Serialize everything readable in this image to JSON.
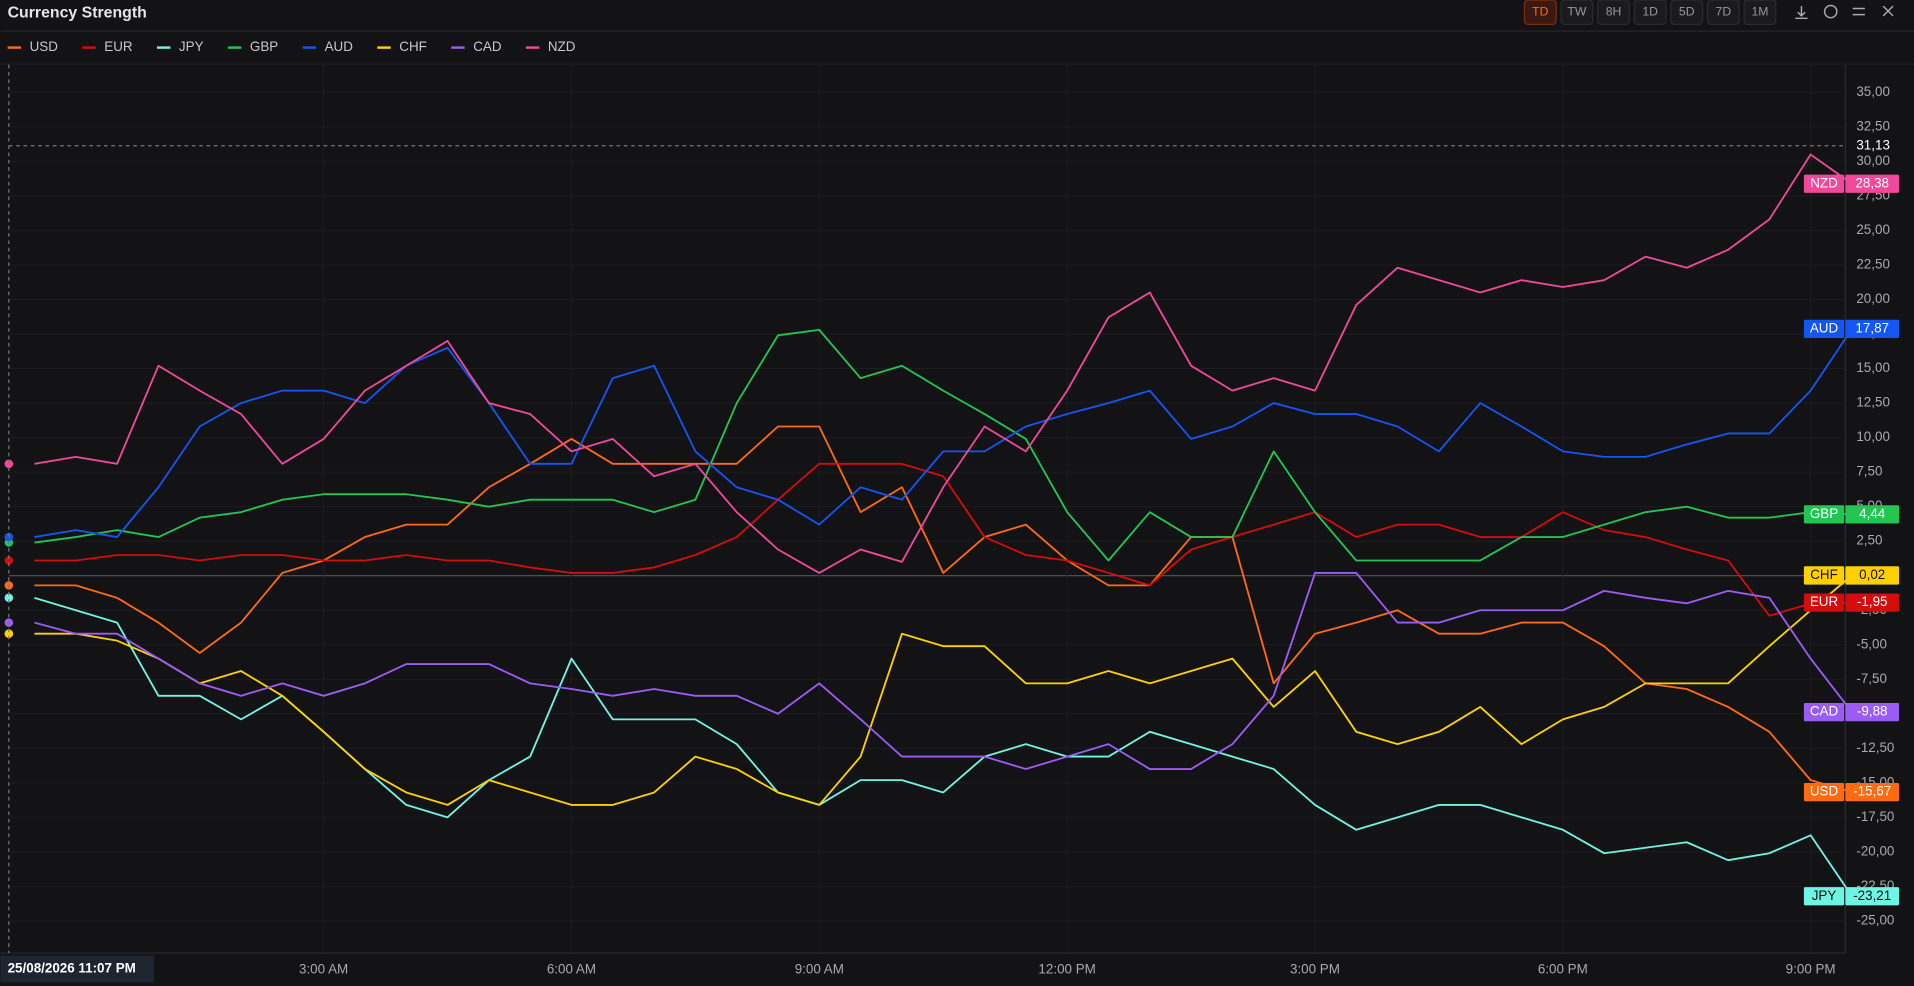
{
  "header": {
    "title": "Currency Strength",
    "buttons": [
      "TD",
      "TW",
      "8H",
      "1D",
      "5D",
      "7D",
      "1M"
    ],
    "active": "TD"
  },
  "chart_data": {
    "type": "line",
    "categories": [
      null,
      null,
      null,
      null,
      null,
      null,
      null,
      "3:00 AM",
      null,
      null,
      null,
      null,
      null,
      "6:00 AM",
      null,
      null,
      null,
      null,
      null,
      "9:00 AM",
      null,
      null,
      null,
      null,
      null,
      "12:00 PM",
      null,
      null,
      null,
      null,
      null,
      "3:00 PM",
      null,
      null,
      null,
      null,
      null,
      "6:00 PM",
      null,
      null,
      null,
      null,
      null,
      "9:00 PM",
      null
    ],
    "ylim": [
      -27.5,
      37
    ],
    "yticks": [
      {
        "value": -25,
        "label": "-25,00"
      },
      {
        "value": -22.5,
        "label": "-22,50"
      },
      {
        "value": -20,
        "label": "-20,00"
      },
      {
        "value": -17.5,
        "label": "-17,50"
      },
      {
        "value": -15,
        "label": "-15,00"
      },
      {
        "value": -12.5,
        "label": "-12,50"
      },
      {
        "value": -10,
        "label": "-10,00"
      },
      {
        "value": -7.5,
        "label": "-7,50"
      },
      {
        "value": -5,
        "label": "-5,00"
      },
      {
        "value": -2.5,
        "label": "-2,50"
      },
      {
        "value": 0,
        "label": "0,00"
      },
      {
        "value": 2.5,
        "label": "2,50"
      },
      {
        "value": 5,
        "label": "5,00"
      },
      {
        "value": 7.5,
        "label": "7,50"
      },
      {
        "value": 10,
        "label": "10,00"
      },
      {
        "value": 12.5,
        "label": "12,50"
      },
      {
        "value": 15,
        "label": "15,00"
      },
      {
        "value": 17.5,
        "label": "17,50"
      },
      {
        "value": 20,
        "label": "20,00"
      },
      {
        "value": 22.5,
        "label": "22,50"
      },
      {
        "value": 25,
        "label": "25,00"
      },
      {
        "value": 27.5,
        "label": "27,50"
      },
      {
        "value": 30,
        "label": "30,00"
      },
      {
        "value": 32.5,
        "label": "32,50"
      },
      {
        "value": 35,
        "label": "35,00"
      }
    ],
    "grid": true,
    "crosshair": {
      "value": 31.13,
      "label": "31,13",
      "time": "25/08/2026 11:07 PM"
    },
    "series": [
      {
        "name": "USD",
        "color": "#ff6a13",
        "values": [
          -0.7,
          -0.7,
          -1.6,
          -3.4,
          -5.6,
          -3.4,
          0.2,
          1.1,
          2.8,
          3.7,
          3.7,
          6.4,
          8.1,
          9.9,
          8.1,
          8.1,
          8.1,
          8.1,
          10.8,
          10.8,
          4.6,
          6.4,
          0.2,
          2.8,
          3.7,
          1.1,
          -0.7,
          -0.7,
          2.8,
          2.8,
          -7.8,
          -4.2,
          -3.4,
          -2.5,
          -4.2,
          -4.2,
          -3.4,
          -3.4,
          -5.1,
          -7.8,
          -8.2,
          -9.5,
          -11.3,
          -14.8,
          -15.67
        ],
        "value_labels": [
          null,
          null,
          null,
          null,
          null,
          null,
          null,
          null,
          null,
          null,
          null,
          null,
          null,
          null,
          null,
          null,
          null,
          null,
          null,
          null,
          null,
          null,
          null,
          null,
          null,
          null,
          null,
          null,
          null,
          null,
          null,
          null,
          null,
          null,
          null,
          null,
          null,
          null,
          null,
          null,
          null,
          null,
          null,
          null,
          "-15,67"
        ]
      },
      {
        "name": "EUR",
        "color": "#d40c0c",
        "values": [
          1.1,
          1.1,
          1.5,
          1.5,
          1.1,
          1.5,
          1.5,
          1.1,
          1.1,
          1.5,
          1.1,
          1.1,
          0.6,
          0.2,
          0.2,
          0.6,
          1.5,
          2.8,
          5.5,
          8.1,
          8.1,
          8.1,
          7.2,
          2.8,
          1.5,
          1.1,
          0.2,
          -0.7,
          1.9,
          2.8,
          3.7,
          4.6,
          2.8,
          3.7,
          3.7,
          2.8,
          2.8,
          4.6,
          3.3,
          2.8,
          1.9,
          1.1,
          -2.9,
          -2.0,
          -1.95
        ],
        "value_labels": [
          null,
          null,
          null,
          null,
          null,
          null,
          null,
          null,
          null,
          null,
          null,
          null,
          null,
          null,
          null,
          null,
          null,
          null,
          null,
          null,
          null,
          null,
          null,
          null,
          null,
          null,
          null,
          null,
          null,
          null,
          null,
          null,
          null,
          null,
          null,
          null,
          null,
          null,
          null,
          null,
          null,
          null,
          null,
          null,
          "-1,95"
        ]
      },
      {
        "name": "JPY",
        "color": "#6ff5e3",
        "values": [
          -1.6,
          -2.5,
          -3.4,
          -8.7,
          -8.7,
          -10.4,
          -8.7,
          -11.3,
          -14.0,
          -16.6,
          -17.5,
          -14.8,
          -13.1,
          -6.0,
          -10.4,
          -10.4,
          -10.4,
          -12.2,
          -15.7,
          -16.6,
          -14.8,
          -14.8,
          -15.7,
          -13.1,
          -12.2,
          -13.1,
          -13.1,
          -11.3,
          -12.2,
          -13.1,
          -14.0,
          -16.6,
          -18.4,
          -17.5,
          -16.6,
          -16.6,
          -17.5,
          -18.4,
          -20.1,
          -19.7,
          -19.3,
          -20.6,
          -20.1,
          -18.8,
          -23.21
        ],
        "value_labels": [
          null,
          null,
          null,
          null,
          null,
          null,
          null,
          null,
          null,
          null,
          null,
          null,
          null,
          null,
          null,
          null,
          null,
          null,
          null,
          null,
          null,
          null,
          null,
          null,
          null,
          null,
          null,
          null,
          null,
          null,
          null,
          null,
          null,
          null,
          null,
          null,
          null,
          null,
          null,
          null,
          null,
          null,
          null,
          null,
          "-23,21"
        ]
      },
      {
        "name": "GBP",
        "color": "#23c552",
        "values": [
          2.4,
          2.8,
          3.3,
          2.8,
          4.2,
          4.6,
          5.5,
          5.9,
          5.9,
          5.9,
          5.5,
          5.0,
          5.5,
          5.5,
          5.5,
          4.6,
          5.5,
          12.5,
          17.4,
          17.8,
          14.3,
          15.2,
          13.4,
          11.7,
          9.9,
          4.6,
          1.1,
          4.6,
          2.8,
          2.8,
          9.0,
          4.6,
          1.1,
          1.1,
          1.1,
          1.1,
          2.8,
          2.8,
          3.7,
          4.6,
          5.0,
          4.2,
          4.2,
          4.6,
          4.44
        ],
        "value_labels": [
          null,
          null,
          null,
          null,
          null,
          null,
          null,
          null,
          null,
          null,
          null,
          null,
          null,
          null,
          null,
          null,
          null,
          null,
          null,
          null,
          null,
          null,
          null,
          null,
          null,
          null,
          null,
          null,
          null,
          null,
          null,
          null,
          null,
          null,
          null,
          null,
          null,
          null,
          null,
          null,
          null,
          null,
          null,
          null,
          "4,44"
        ]
      },
      {
        "name": "AUD",
        "color": "#1455f5",
        "values": [
          2.8,
          3.3,
          2.8,
          6.4,
          10.8,
          12.5,
          13.4,
          13.4,
          12.5,
          15.2,
          16.5,
          12.5,
          8.1,
          8.1,
          14.3,
          15.2,
          9.0,
          6.4,
          5.5,
          3.7,
          6.4,
          5.5,
          9.0,
          9.0,
          10.8,
          11.7,
          12.5,
          13.4,
          9.9,
          10.8,
          12.5,
          11.7,
          11.7,
          10.8,
          9.0,
          12.5,
          10.8,
          9.0,
          8.6,
          8.6,
          9.5,
          10.3,
          10.3,
          13.4,
          17.87
        ],
        "value_labels": [
          null,
          null,
          null,
          null,
          null,
          null,
          null,
          null,
          null,
          null,
          null,
          null,
          null,
          null,
          null,
          null,
          null,
          null,
          null,
          null,
          null,
          null,
          null,
          null,
          null,
          null,
          null,
          null,
          null,
          null,
          null,
          null,
          null,
          null,
          null,
          null,
          null,
          null,
          null,
          null,
          null,
          null,
          null,
          null,
          "17,87"
        ]
      },
      {
        "name": "CHF",
        "color": "#ffd000",
        "values": [
          -4.2,
          -4.2,
          -4.7,
          -6.0,
          -7.8,
          -6.9,
          -8.7,
          -11.3,
          -14.0,
          -15.7,
          -16.6,
          -14.8,
          -15.7,
          -16.6,
          -16.6,
          -15.7,
          -13.1,
          -14.0,
          -15.7,
          -16.6,
          -13.1,
          -4.2,
          -5.1,
          -5.1,
          -7.8,
          -7.8,
          -6.9,
          -7.8,
          -6.9,
          -6.0,
          -9.5,
          -6.9,
          -11.3,
          -12.2,
          -11.3,
          -9.5,
          -12.2,
          -10.4,
          -9.5,
          -7.8,
          -7.8,
          -7.8,
          -5.1,
          -2.5,
          0.02
        ],
        "value_labels": [
          null,
          null,
          null,
          null,
          null,
          null,
          null,
          null,
          null,
          null,
          null,
          null,
          null,
          null,
          null,
          null,
          null,
          null,
          null,
          null,
          null,
          null,
          null,
          null,
          null,
          null,
          null,
          null,
          null,
          null,
          null,
          null,
          null,
          null,
          null,
          null,
          null,
          null,
          null,
          null,
          null,
          null,
          null,
          null,
          "0,02"
        ]
      },
      {
        "name": "CAD",
        "color": "#9b5cf5",
        "values": [
          -3.4,
          -4.2,
          -4.2,
          -6.0,
          -7.8,
          -8.7,
          -7.8,
          -8.7,
          -7.8,
          -6.4,
          -6.4,
          -6.4,
          -7.8,
          -8.2,
          -8.7,
          -8.2,
          -8.7,
          -8.7,
          -10.0,
          -7.8,
          -10.4,
          -13.1,
          -13.1,
          -13.1,
          -14.0,
          -13.1,
          -12.2,
          -14.0,
          -14.0,
          -12.2,
          -8.7,
          0.2,
          0.2,
          -3.4,
          -3.4,
          -2.5,
          -2.5,
          -2.5,
          -1.1,
          -1.6,
          -2.0,
          -1.1,
          -1.6,
          -6.0,
          -9.88
        ],
        "value_labels": [
          null,
          null,
          null,
          null,
          null,
          null,
          null,
          null,
          null,
          null,
          null,
          null,
          null,
          null,
          null,
          null,
          null,
          null,
          null,
          null,
          null,
          null,
          null,
          null,
          null,
          null,
          null,
          null,
          null,
          null,
          null,
          null,
          null,
          null,
          null,
          null,
          null,
          null,
          null,
          null,
          null,
          null,
          null,
          null,
          "-9,88"
        ]
      },
      {
        "name": "NZD",
        "color": "#f0489a",
        "values": [
          8.1,
          8.6,
          8.1,
          15.2,
          13.4,
          11.7,
          8.1,
          9.9,
          13.4,
          15.2,
          17.0,
          12.5,
          11.7,
          9.0,
          9.9,
          7.2,
          8.1,
          4.6,
          1.9,
          0.2,
          1.9,
          1.0,
          6.4,
          10.8,
          9.0,
          13.4,
          18.7,
          20.5,
          15.2,
          13.4,
          14.3,
          13.4,
          19.6,
          22.3,
          21.4,
          20.5,
          21.4,
          20.9,
          21.4,
          23.1,
          22.3,
          23.6,
          25.8,
          30.5,
          28.38
        ],
        "value_labels": [
          null,
          null,
          null,
          null,
          null,
          null,
          null,
          null,
          null,
          null,
          null,
          null,
          null,
          null,
          null,
          null,
          null,
          null,
          null,
          null,
          null,
          null,
          null,
          null,
          null,
          null,
          null,
          null,
          null,
          null,
          null,
          null,
          null,
          null,
          null,
          null,
          null,
          null,
          null,
          null,
          null,
          null,
          null,
          null,
          "28,38"
        ]
      }
    ]
  }
}
